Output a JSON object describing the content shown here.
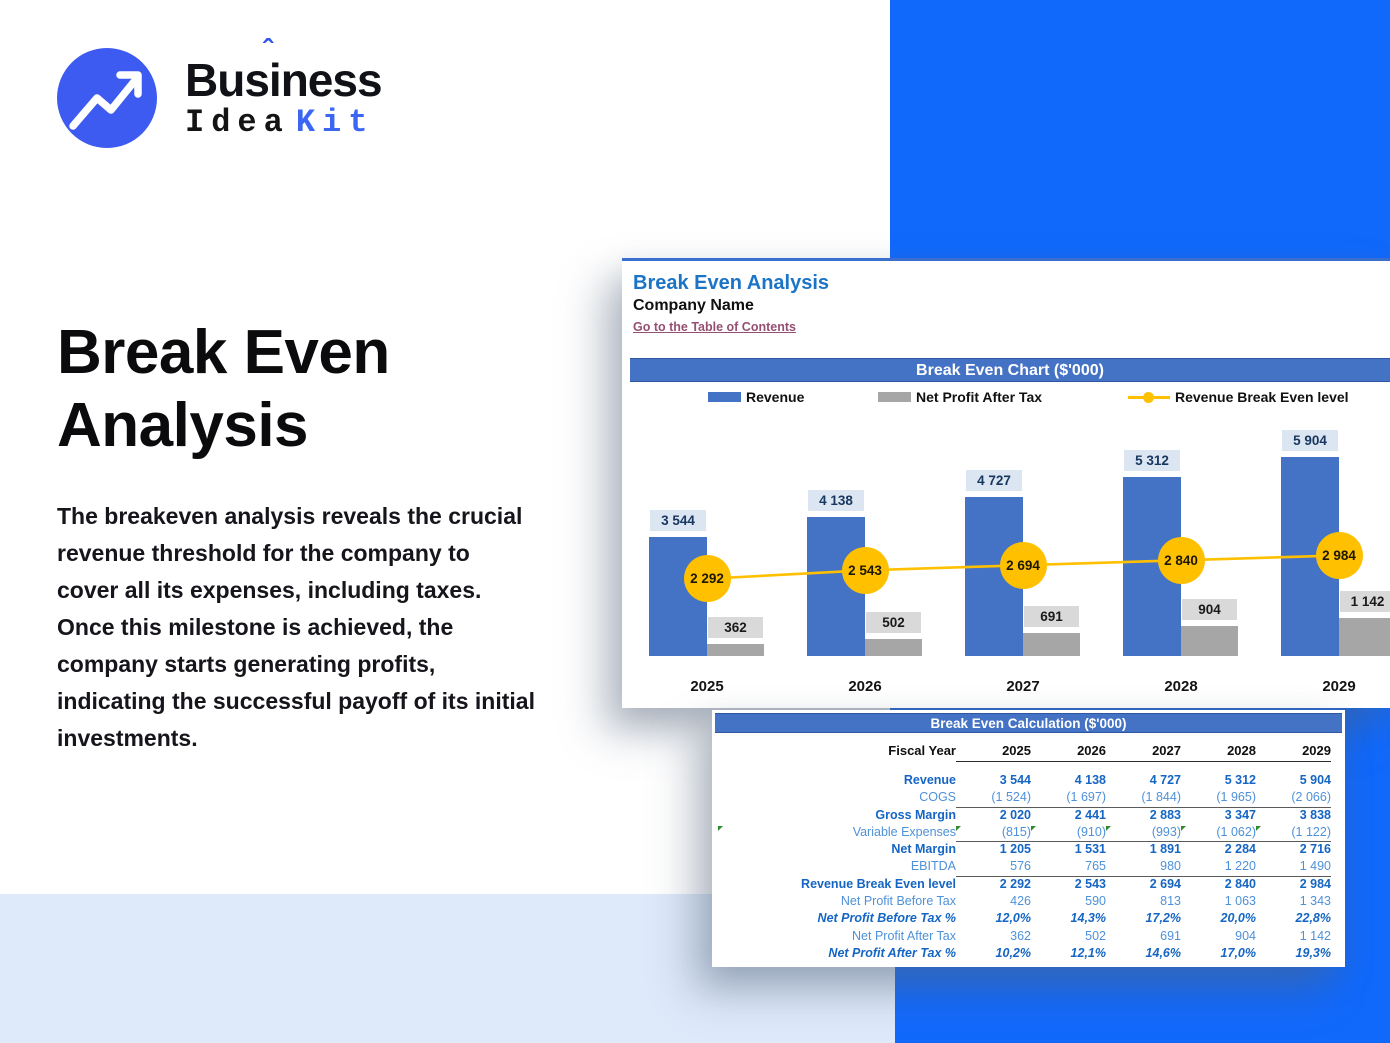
{
  "logo": {
    "word_pre": "Bus",
    "word_i": "i",
    "word_post": "ness",
    "caret": "ˆ",
    "idea": "Idea",
    "kit": "Kit",
    "icon": "trend-up-arrow-icon",
    "colors": {
      "circle": "#3D5BF0",
      "kit": "#3A66F3"
    }
  },
  "hero": {
    "title": "Break Even Analysis",
    "description": "The breakeven analysis reveals the crucial revenue threshold for the company to cover all its expenses, including taxes. Once this milestone is achieved, the company starts generating profits, indicating the successful payoff of its initial investments."
  },
  "sheet": {
    "title": "Break Even Analysis",
    "company": "Company Name",
    "link": "Go to the Table of Contents",
    "chart_header": "Break Even Chart ($'000)",
    "table_header": "Break Even Calculation ($'000)",
    "fiscal_year_label": "Fiscal Year"
  },
  "chart_data": {
    "type": "bar",
    "title": "Break Even Chart ($'000)",
    "categories": [
      "2025",
      "2026",
      "2027",
      "2028",
      "2029"
    ],
    "series": [
      {
        "name": "Revenue",
        "type": "bar",
        "color": "#4472C4",
        "values": [
          3544,
          4138,
          4727,
          5312,
          5904
        ],
        "labels": [
          "3 544",
          "4 138",
          "4 727",
          "5 312",
          "5 904"
        ]
      },
      {
        "name": "Net Profit After Tax",
        "type": "bar",
        "color": "#A6A6A6",
        "values": [
          362,
          502,
          691,
          904,
          1142
        ],
        "labels": [
          "362",
          "502",
          "691",
          "904",
          "1 142"
        ]
      },
      {
        "name": "Revenue Break Even level",
        "type": "line",
        "color": "#FFC000",
        "values": [
          2292,
          2543,
          2694,
          2840,
          2984
        ],
        "labels": [
          "2 292",
          "2 543",
          "2 694",
          "2 840",
          "2 984"
        ]
      }
    ],
    "legend_position": "top",
    "ylim": [
      0,
      6500
    ],
    "grid": false
  },
  "table": {
    "rows": [
      {
        "label": "Revenue",
        "style": "bold",
        "underline": false,
        "flags": false,
        "values": [
          "3 544",
          "4 138",
          "4 727",
          "5 312",
          "5 904"
        ]
      },
      {
        "label": "COGS",
        "style": "light",
        "underline": true,
        "flags": false,
        "values": [
          "(1 524)",
          "(1 697)",
          "(1 844)",
          "(1 965)",
          "(2 066)"
        ]
      },
      {
        "label": "Gross Margin",
        "style": "bold",
        "underline": false,
        "flags": false,
        "values": [
          "2 020",
          "2 441",
          "2 883",
          "3 347",
          "3 838"
        ]
      },
      {
        "label": "Variable Expenses",
        "style": "light",
        "underline": true,
        "flags": true,
        "values": [
          "(815)",
          "(910)",
          "(993)",
          "(1 062)",
          "(1 122)"
        ]
      },
      {
        "label": "Net Margin",
        "style": "bold",
        "underline": false,
        "flags": false,
        "values": [
          "1 205",
          "1 531",
          "1 891",
          "2 284",
          "2 716"
        ]
      },
      {
        "label": "EBITDA",
        "style": "light",
        "underline": true,
        "flags": false,
        "values": [
          "576",
          "765",
          "980",
          "1 220",
          "1 490"
        ]
      },
      {
        "label": "Revenue Break Even level",
        "style": "bold",
        "underline": false,
        "flags": false,
        "values": [
          "2 292",
          "2 543",
          "2 694",
          "2 840",
          "2 984"
        ]
      },
      {
        "label": "Net Profit Before Tax",
        "style": "light",
        "underline": false,
        "flags": false,
        "values": [
          "426",
          "590",
          "813",
          "1 063",
          "1 343"
        ]
      },
      {
        "label": "Net Profit Before Tax %",
        "style": "bolditalic",
        "underline": false,
        "flags": false,
        "values": [
          "12,0%",
          "14,3%",
          "17,2%",
          "20,0%",
          "22,8%"
        ]
      },
      {
        "label": "Net Profit After Tax",
        "style": "light",
        "underline": false,
        "flags": false,
        "values": [
          "362",
          "502",
          "691",
          "904",
          "1 142"
        ]
      },
      {
        "label": "Net Profit After Tax %",
        "style": "bolditalic",
        "underline": false,
        "flags": false,
        "values": [
          "10,2%",
          "12,1%",
          "14,6%",
          "17,0%",
          "19,3%"
        ]
      }
    ]
  },
  "colors": {
    "background_blue": "#1169FB",
    "background_lightblue": "#DEE9FA",
    "excel_header": "#4472C4",
    "revenue_bar": "#4472C4",
    "net_profit_bar": "#A6A6A6",
    "breakeven_line": "#FFC000",
    "link": "#954F72",
    "table_bold_text": "#1566C4",
    "table_light_text": "#4E91D9"
  }
}
